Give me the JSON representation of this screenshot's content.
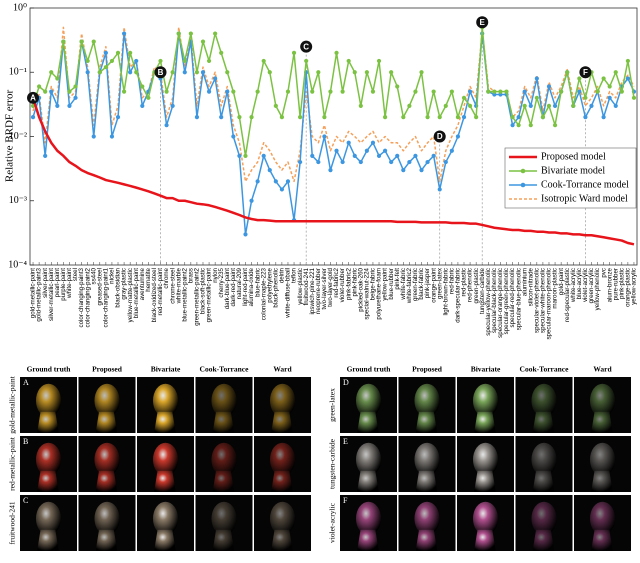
{
  "chart_data": {
    "type": "line",
    "y_label": "Relative BRDF error",
    "log_scale": true,
    "legend": "right",
    "ylim": [
      0.0001,
      1
    ],
    "yticks": [
      {
        "value": 0.0001,
        "label": "10⁻⁴"
      },
      {
        "value": 0.001,
        "label": "10⁻³"
      },
      {
        "value": 0.01,
        "label": "10⁻²"
      },
      {
        "value": 0.1,
        "label": "10⁻¹"
      },
      {
        "value": 1,
        "label": "10⁰"
      }
    ],
    "categories": [
      "gold-metallic-paint",
      "gold-metallic-paint3",
      "silver-paint",
      "silver-metallic-paint",
      "pearl-paint",
      "purple-paint",
      "white-paint",
      "steel",
      "color-changing-paint3",
      "color-changing-paint2",
      "ss440",
      "greased-steel",
      "color-changing-paint1",
      "nickel",
      "black-obsidian",
      "gray-plastic",
      "yellow-matte-plastic",
      "blue-metallic-paint",
      "aventurnine",
      "hematite",
      "black-oxidized-steel",
      "red-metallic-paint",
      "chrome",
      "chrome-steel",
      "white-marble",
      "blue-metallic-paint2",
      "brass",
      "green-metallic-paint2",
      "black-soft-plastic",
      "green-metallic-paint",
      "nylon",
      "cherry-235",
      "dark-blue-paint",
      "dark-red-paint",
      "natural-209",
      "light-red-paint",
      "alumina-oxide",
      "blue-fabric",
      "colonial-maple-223",
      "polyethylene",
      "black-phenolic",
      "delrin",
      "white-diffuse-bball",
      "teflon",
      "yellow-plastic",
      "fruitwood-241",
      "ipswich-pine-221",
      "neoprene-rubber",
      "two-layer-silver",
      "two-layer-gold",
      "red-fabric2",
      "violet-rubber",
      "pink-fabric2",
      "pink-fabric",
      "pickled-oak-260",
      "special-walnut-224",
      "beige-fabric",
      "polyurethane-foam",
      "yellow-paint",
      "blue-rubber",
      "pink-felt",
      "white-fabric",
      "white-fabric2",
      "green-fabric",
      "black-fabric",
      "pink-jasper",
      "orange-paint",
      "green-latex",
      "light-brown-fabric",
      "red-fabric",
      "dark-specular-fabric",
      "red-plastic",
      "red-phenolic",
      "green-plastic",
      "tungsten-carbide",
      "specular-yellow-phenolic",
      "specular-black-phenolic",
      "specular-orange-phenolic",
      "specular-green-phenolic",
      "specular-red-phenolic",
      "specular-blue-phenolic",
      "aluminium",
      "silicon-nitrade",
      "specular-violet-phenolic",
      "specular-white-phenolic",
      "specular-maroon-phenolic",
      "maroon-plastic",
      "gold-paint",
      "red-specular-plastic",
      "white-acrylic",
      "blue-acrylic",
      "violet-acrylic",
      "green-acrylic",
      "yellow-phenolic",
      "pvc",
      "alum-bronze",
      "pure-rubber",
      "pink-plastic",
      "orange-plastic",
      "yellow-acrylic"
    ],
    "series": [
      {
        "name": "Proposed model",
        "color": "#e8141b",
        "style": "solid",
        "width": 2.5,
        "markers": false,
        "values": [
          0.04,
          0.02,
          0.012,
          0.008,
          0.006,
          0.005,
          0.004,
          0.0035,
          0.003,
          0.0027,
          0.0025,
          0.0023,
          0.0021,
          0.002,
          0.0019,
          0.0018,
          0.0017,
          0.0016,
          0.0015,
          0.0014,
          0.0013,
          0.0012,
          0.0011,
          0.0011,
          0.001,
          0.001,
          0.00095,
          0.0009,
          0.00088,
          0.00085,
          0.0008,
          0.00075,
          0.0007,
          0.00065,
          0.0006,
          0.00055,
          0.00052,
          0.0005,
          0.0005,
          0.00049,
          0.00048,
          0.00048,
          0.00048,
          0.00048,
          0.00048,
          0.00048,
          0.00048,
          0.00048,
          0.00048,
          0.00048,
          0.00048,
          0.00048,
          0.00048,
          0.00048,
          0.00048,
          0.00048,
          0.00048,
          0.00048,
          0.00048,
          0.00048,
          0.00047,
          0.00047,
          0.00047,
          0.00047,
          0.00046,
          0.00046,
          0.00046,
          0.00046,
          0.00046,
          0.00045,
          0.00045,
          0.00045,
          0.00044,
          0.00044,
          0.00042,
          0.0004,
          0.00038,
          0.00037,
          0.00036,
          0.00035,
          0.00035,
          0.00034,
          0.00034,
          0.00033,
          0.00033,
          0.00032,
          0.00032,
          0.00031,
          0.00031,
          0.0003,
          0.0003,
          0.00029,
          0.00029,
          0.00028,
          0.00027,
          0.00026,
          0.00025,
          0.00024,
          0.00022,
          0.00021
        ]
      },
      {
        "name": "Bivariate model",
        "color": "#7cc242",
        "style": "solid",
        "width": 1.5,
        "markers": true,
        "values": [
          0.03,
          0.06,
          0.05,
          0.1,
          0.08,
          0.3,
          0.05,
          0.06,
          0.3,
          0.15,
          0.3,
          0.1,
          0.12,
          0.15,
          0.2,
          0.05,
          0.2,
          0.1,
          0.06,
          0.04,
          0.1,
          0.15,
          0.05,
          0.1,
          0.4,
          0.15,
          0.4,
          0.1,
          0.3,
          0.15,
          0.4,
          0.2,
          0.1,
          0.05,
          0.02,
          0.005,
          0.02,
          0.05,
          0.15,
          0.1,
          0.03,
          0.02,
          0.05,
          0.2,
          0.02,
          0.15,
          0.05,
          0.1,
          0.02,
          0.05,
          0.2,
          0.05,
          0.15,
          0.1,
          0.03,
          0.1,
          0.05,
          0.15,
          0.02,
          0.1,
          0.06,
          0.02,
          0.03,
          0.05,
          0.1,
          0.02,
          0.05,
          0.02,
          0.03,
          0.05,
          0.02,
          0.04,
          0.03,
          0.02,
          0.5,
          0.05,
          0.05,
          0.05,
          0.05,
          0.02,
          0.015,
          0.03,
          0.015,
          0.04,
          0.02,
          0.03,
          0.015,
          0.05,
          0.1,
          0.03,
          0.08,
          0.04,
          0.1,
          0.05,
          0.08,
          0.06,
          0.1,
          0.05,
          0.15,
          0.04
        ]
      },
      {
        "name": "Cook-Torrance model",
        "color": "#3d97e0",
        "style": "solid",
        "width": 1.5,
        "markers": true,
        "values": [
          0.02,
          0.04,
          0.005,
          0.05,
          0.03,
          0.3,
          0.03,
          0.04,
          0.3,
          0.1,
          0.01,
          0.1,
          0.2,
          0.01,
          0.02,
          0.4,
          0.1,
          0.15,
          0.03,
          0.05,
          0.1,
          0.08,
          0.015,
          0.03,
          0.4,
          0.1,
          0.3,
          0.02,
          0.1,
          0.05,
          0.08,
          0.02,
          0.05,
          0.01,
          0.005,
          0.0003,
          0.001,
          0.002,
          0.005,
          0.003,
          0.002,
          0.0015,
          0.002,
          0.0005,
          0.004,
          0.1,
          0.005,
          0.004,
          0.01,
          0.003,
          0.006,
          0.004,
          0.008,
          0.005,
          0.004,
          0.006,
          0.008,
          0.005,
          0.006,
          0.004,
          0.005,
          0.003,
          0.004,
          0.005,
          0.003,
          0.004,
          0.005,
          0.0015,
          0.004,
          0.006,
          0.01,
          0.02,
          0.05,
          0.03,
          0.4,
          0.05,
          0.045,
          0.045,
          0.045,
          0.015,
          0.02,
          0.05,
          0.03,
          0.08,
          0.02,
          0.06,
          0.03,
          0.05,
          0.1,
          0.03,
          0.05,
          0.02,
          0.03,
          0.05,
          0.02,
          0.04,
          0.03,
          0.06,
          0.08,
          0.05
        ]
      },
      {
        "name": "Isotropic Ward model",
        "color": "#f5a05a",
        "style": "dashed",
        "width": 1.5,
        "markers": false,
        "values": [
          0.025,
          0.045,
          0.008,
          0.06,
          0.04,
          0.5,
          0.04,
          0.05,
          0.4,
          0.12,
          0.015,
          0.12,
          0.25,
          0.015,
          0.03,
          0.5,
          0.12,
          0.15,
          0.04,
          0.05,
          0.12,
          0.1,
          0.02,
          0.04,
          0.5,
          0.12,
          0.35,
          0.03,
          0.12,
          0.06,
          0.1,
          0.03,
          0.06,
          0.015,
          0.008,
          0.002,
          0.003,
          0.004,
          0.008,
          0.006,
          0.004,
          0.003,
          0.004,
          0.002,
          0.006,
          0.05,
          0.01,
          0.008,
          0.015,
          0.006,
          0.01,
          0.008,
          0.012,
          0.01,
          0.008,
          0.01,
          0.012,
          0.008,
          0.01,
          0.008,
          0.008,
          0.006,
          0.008,
          0.01,
          0.006,
          0.008,
          0.01,
          0.002,
          0.006,
          0.01,
          0.015,
          0.03,
          0.06,
          0.04,
          0.45,
          0.06,
          0.05,
          0.05,
          0.05,
          0.02,
          0.025,
          0.06,
          0.04,
          0.09,
          0.025,
          0.07,
          0.04,
          0.06,
          0.11,
          0.04,
          0.06,
          0.03,
          0.04,
          0.06,
          0.03,
          0.05,
          0.04,
          0.07,
          0.09,
          0.06
        ]
      }
    ],
    "annotations": [
      {
        "text": "A",
        "category_index": 0,
        "y": 0.04
      },
      {
        "text": "B",
        "category_index": 21,
        "y": 0.1
      },
      {
        "text": "C",
        "category_index": 45,
        "y": 0.25
      },
      {
        "text": "D",
        "category_index": 67,
        "y": 0.01
      },
      {
        "text": "E",
        "category_index": 74,
        "y": 0.6
      },
      {
        "text": "F",
        "category_index": 91,
        "y": 0.1
      }
    ]
  },
  "figure_grid": {
    "columns": [
      "Ground truth",
      "Proposed",
      "Bivariate",
      "Cook-Torrance",
      "Ward"
    ],
    "panels": [
      [
        {
          "letter": "A",
          "material": "gold-metallic-paint",
          "tint": "#d9a52a"
        },
        {
          "letter": "B",
          "material": "red-metallic-paint",
          "tint": "#c8382c"
        },
        {
          "letter": "C",
          "material": "fruitwood-241",
          "tint": "#8a7a66"
        }
      ],
      [
        {
          "letter": "D",
          "material": "green-latex",
          "tint": "#7aa55a"
        },
        {
          "letter": "E",
          "material": "tungsten-carbide",
          "tint": "#9a9590"
        },
        {
          "letter": "F",
          "material": "violet-acrylic",
          "tint": "#b0508e"
        }
      ]
    ]
  }
}
